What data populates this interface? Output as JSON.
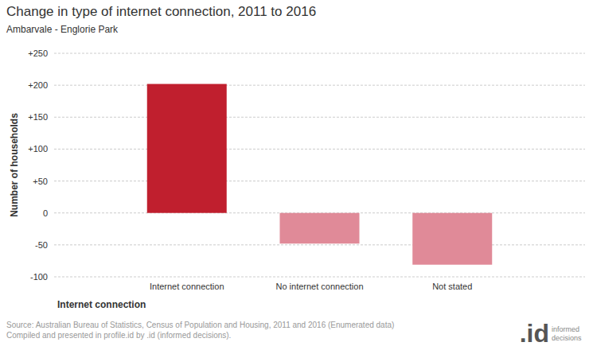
{
  "chart_data": {
    "type": "bar",
    "title": "Change in type of internet connection, 2011 to 2016",
    "subtitle": "Ambarvale - Englorie Park",
    "x_label": "Internet connection",
    "y_label": "Number of households",
    "categories": [
      "Internet connection",
      "No internet connection",
      "Not stated"
    ],
    "values": [
      202,
      -48,
      -81
    ],
    "colors": [
      "#c01f2e",
      "#e08a98",
      "#e08a98"
    ],
    "ylim": [
      -100,
      250
    ],
    "yticks": [
      {
        "value": 250,
        "label": "+250"
      },
      {
        "value": 200,
        "label": "+200"
      },
      {
        "value": 150,
        "label": "+150"
      },
      {
        "value": 100,
        "label": "+100"
      },
      {
        "value": 50,
        "label": "+50"
      },
      0,
      -50,
      -100
    ],
    "grid": true,
    "source": [
      "Source: Australian Bureau of Statistics, Census of Population and Housing, 2011 and 2016 (Enumerated data)",
      "Compiled and presented in profile.id by .id (informed decisions)."
    ],
    "annotations": [
      ".id",
      "informed",
      "decisions"
    ]
  }
}
